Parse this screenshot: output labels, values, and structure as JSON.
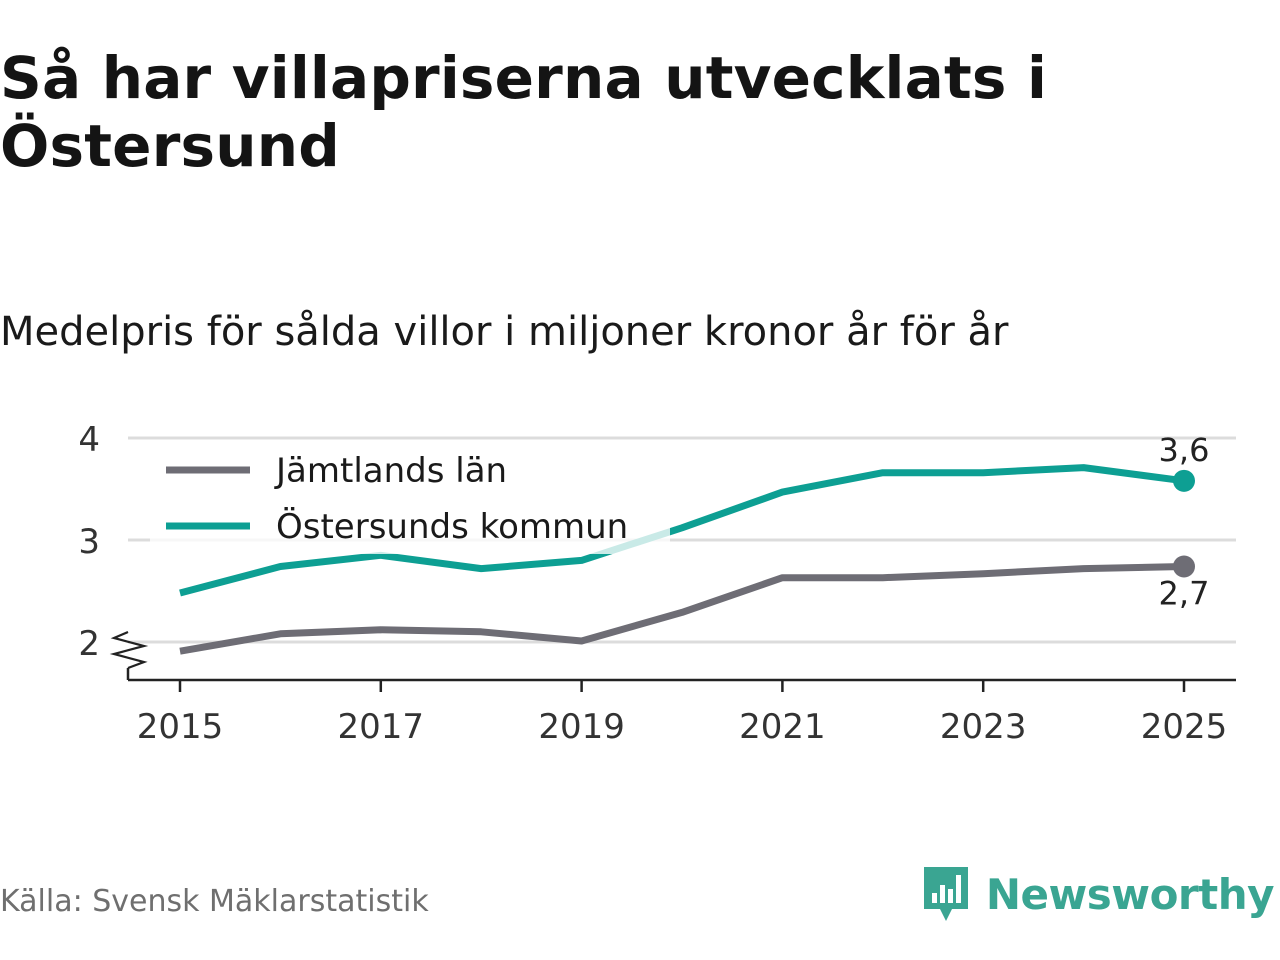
{
  "title": "Så har villapriserna utvecklats i Östersund",
  "subtitle": "Medelpris för sålda villor i miljoner kronor år för år",
  "source": "Källa: Svensk Mäklarstatistik",
  "brand": "Newsworthy",
  "colors": {
    "jamtland": "#6e6d75",
    "ostersund": "#0d9f93",
    "grid": "#dcdcdc",
    "brand": "#3aa592"
  },
  "chart_data": {
    "type": "line",
    "title": "",
    "xlabel": "",
    "ylabel": "",
    "ylim": [
      1.6,
      4.1
    ],
    "y_ticks": [
      2,
      3,
      4
    ],
    "y_tick_labels": [
      "2",
      "3",
      "4"
    ],
    "x_ticks": [
      2015,
      2017,
      2019,
      2021,
      2023,
      2025
    ],
    "x_tick_labels": [
      "2015",
      "2017",
      "2019",
      "2021",
      "2023",
      "2025"
    ],
    "y_axis_break": true,
    "grid": true,
    "legend_position": "top-left",
    "x": [
      2015,
      2016,
      2017,
      2018,
      2019,
      2020,
      2021,
      2022,
      2023,
      2024,
      2025
    ],
    "series": [
      {
        "name": "Jämtlands län",
        "color": "#6e6d75",
        "values": [
          1.91,
          2.08,
          2.12,
          2.1,
          2.01,
          2.29,
          2.63,
          2.63,
          2.67,
          2.72,
          2.74
        ],
        "end_label": "2,7",
        "end_label_position": "below"
      },
      {
        "name": "Östersunds kommun",
        "color": "#0d9f93",
        "values": [
          2.48,
          2.74,
          2.85,
          2.72,
          2.8,
          3.12,
          3.47,
          3.66,
          3.66,
          3.71,
          3.58
        ],
        "end_label": "3,6",
        "end_label_position": "above"
      }
    ]
  }
}
